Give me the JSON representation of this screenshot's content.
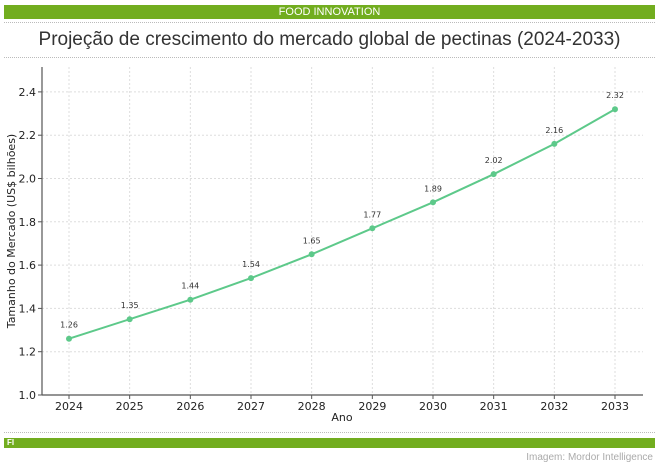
{
  "header": {
    "section_label": "FOOD INNOVATION"
  },
  "footer": {
    "brand": "FI",
    "source": "Imagem: Mordor Intelligence"
  },
  "colors": {
    "accent": "#72ad1f",
    "series": "#5dc98a"
  },
  "chart_data": {
    "type": "line",
    "title": "Projeção de crescimento do mercado global de pectinas (2024-2033)",
    "xlabel": "Ano",
    "ylabel": "Tamanho do Mercado (US$ bilhões)",
    "x": [
      "2024",
      "2025",
      "2026",
      "2027",
      "2028",
      "2029",
      "2030",
      "2031",
      "2032",
      "2033"
    ],
    "series": [
      {
        "name": "Tamanho do Mercado",
        "values": [
          1.26,
          1.35,
          1.44,
          1.54,
          1.65,
          1.77,
          1.89,
          2.02,
          2.16,
          2.32
        ]
      }
    ],
    "data_labels": [
      "1.26",
      "1.35",
      "1.44",
      "1.54",
      "1.65",
      "1.77",
      "1.89",
      "2.02",
      "2.16",
      "2.32"
    ],
    "yticks": [
      "1.0",
      "1.2",
      "1.4",
      "1.6",
      "1.8",
      "2.0",
      "2.2",
      "2.4"
    ],
    "ytick_values": [
      1.0,
      1.2,
      1.4,
      1.6,
      1.8,
      2.0,
      2.2,
      2.4
    ],
    "ylim": [
      1.0,
      2.515
    ],
    "grid": true,
    "legend": "none"
  }
}
